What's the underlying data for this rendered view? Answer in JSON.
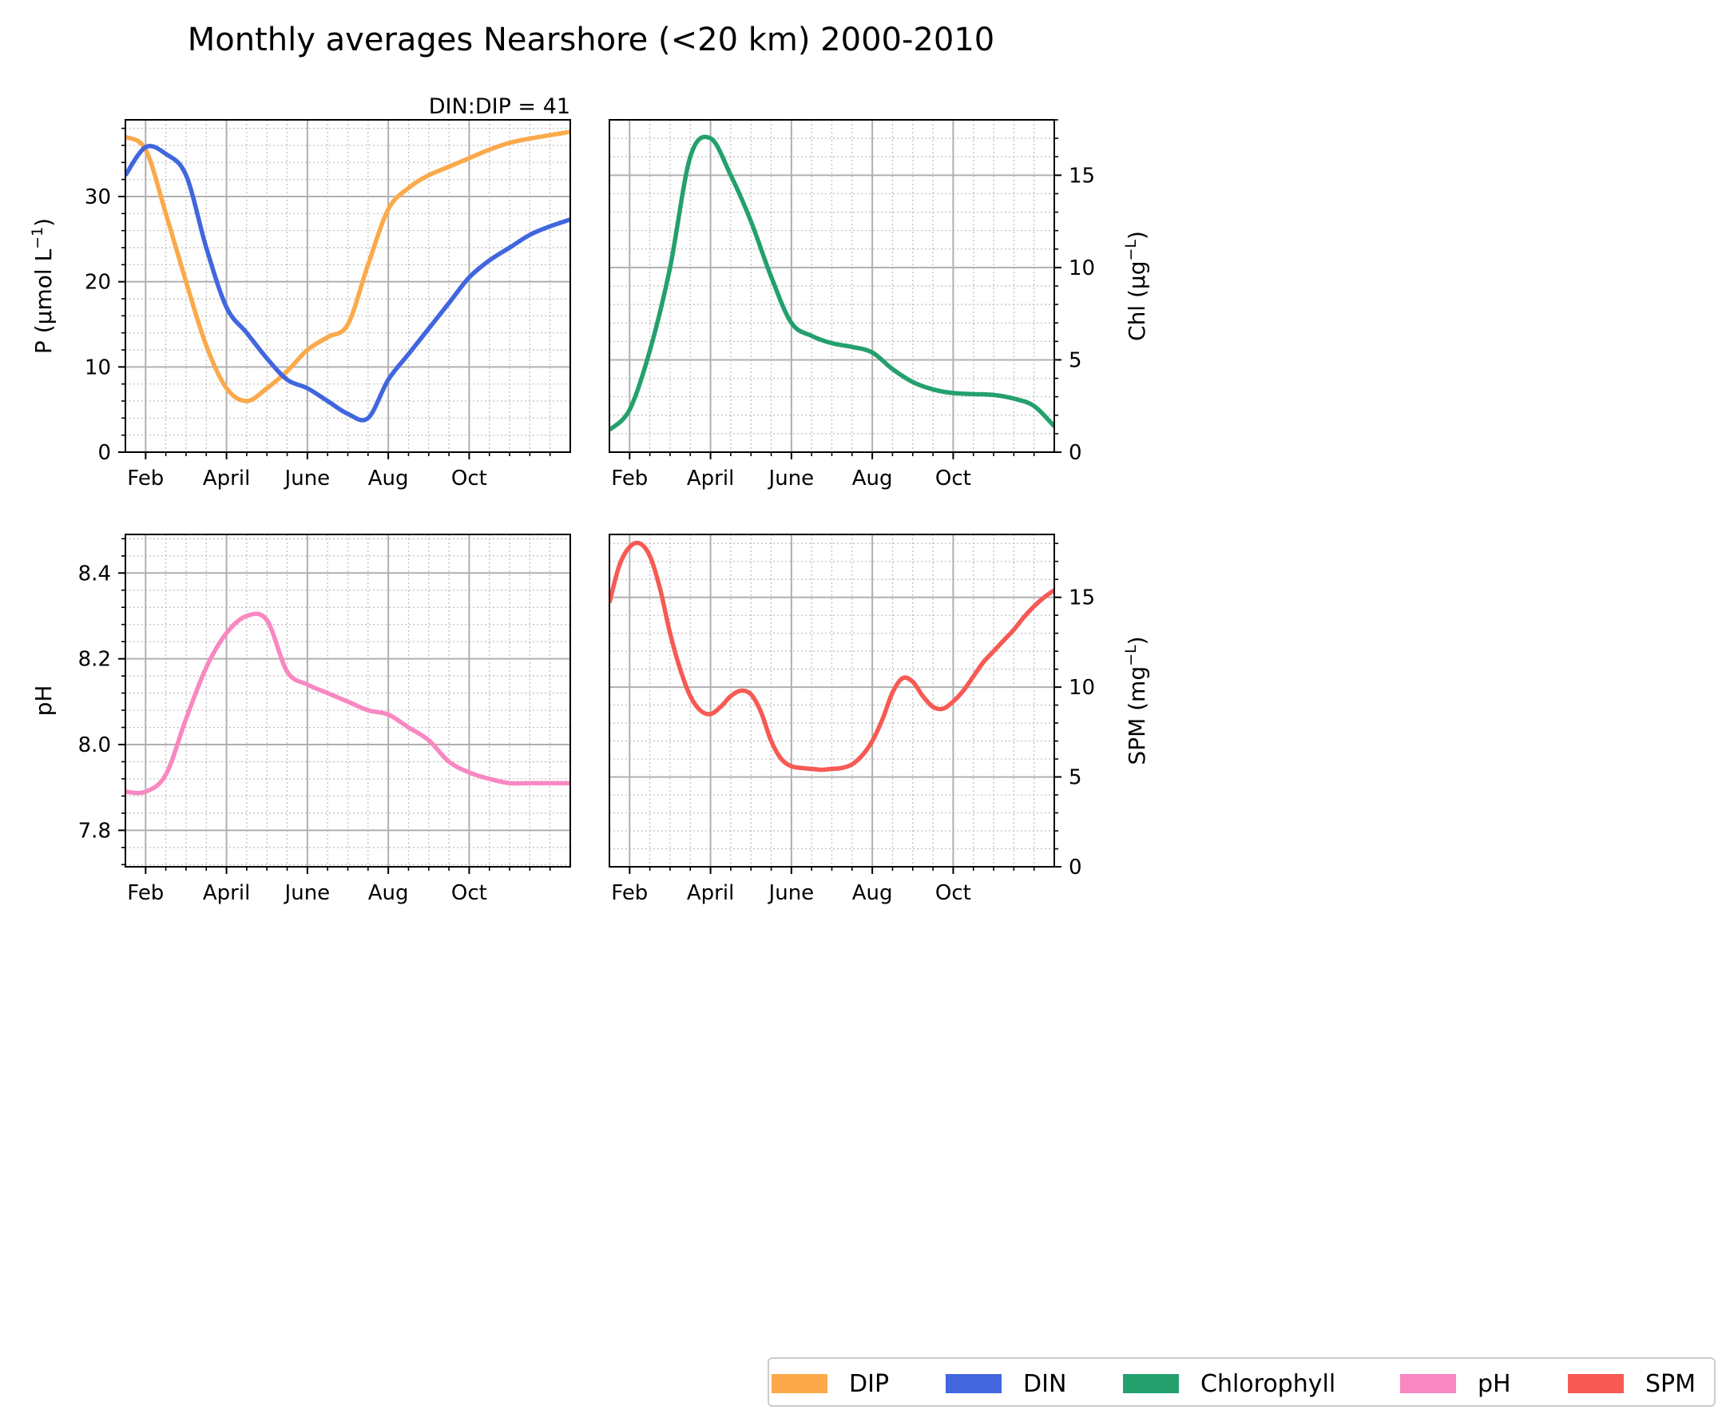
{
  "figure_title": "Monthly averages Nearshore (<20 km) 2000-2010",
  "legend": [
    {
      "label": "DIP",
      "color": "#fba94a"
    },
    {
      "label": "DIN",
      "color": "#4166de"
    },
    {
      "label": "Chlorophyll",
      "color": "#23a06d"
    },
    {
      "label": "pH",
      "color": "#f987c2"
    },
    {
      "label": "SPM",
      "color": "#f65a53"
    }
  ],
  "chart_data": [
    {
      "id": "p",
      "type": "line",
      "title": "",
      "annotation": "DIN:DIP = 41",
      "ylabel_main": "P (µmol L",
      "ylabel_sup": "−1",
      "ylabel_tail": ")",
      "ylabel_side": "left",
      "ylim": [
        0,
        39
      ],
      "xlim": [
        0.5,
        11.5
      ],
      "yticks": [
        0,
        10,
        20,
        30
      ],
      "ytick_labels": [
        "0",
        "10",
        "20",
        "30"
      ],
      "yminor_step": 2,
      "xticks": [
        1,
        3,
        5,
        7,
        9
      ],
      "xtick_labels": [
        "Feb",
        "April",
        "June",
        "Aug",
        "Oct"
      ],
      "series": [
        {
          "name": "DIP",
          "color": "#fba94a",
          "x": [
            0.5,
            1.0,
            1.5,
            2.0,
            2.5,
            3.0,
            3.5,
            4.0,
            4.5,
            5.0,
            5.5,
            6.0,
            6.5,
            7.0,
            7.5,
            8.0,
            8.5,
            9.0,
            9.5,
            10.0,
            10.5,
            11.0,
            11.5
          ],
          "y": [
            37.0,
            35.5,
            28.0,
            20.0,
            12.5,
            7.5,
            6.0,
            7.5,
            9.5,
            12.0,
            13.5,
            15.0,
            22.0,
            28.5,
            31.0,
            32.5,
            33.5,
            34.5,
            35.5,
            36.3,
            36.8,
            37.2,
            37.6
          ]
        },
        {
          "name": "DIN",
          "color": "#4166de",
          "x": [
            0.5,
            1.0,
            1.5,
            2.0,
            2.5,
            3.0,
            3.5,
            4.0,
            4.5,
            5.0,
            5.5,
            6.0,
            6.5,
            7.0,
            7.5,
            8.0,
            8.5,
            9.0,
            9.5,
            10.0,
            10.5,
            11.0,
            11.5
          ],
          "y": [
            32.5,
            35.8,
            35.0,
            32.5,
            24.0,
            17.0,
            14.0,
            11.0,
            8.5,
            7.5,
            6.0,
            4.5,
            4.0,
            8.5,
            11.5,
            14.5,
            17.5,
            20.5,
            22.5,
            24.0,
            25.5,
            26.5,
            27.3
          ]
        }
      ]
    },
    {
      "id": "chl",
      "type": "line",
      "title": "",
      "annotation": "",
      "ylabel_main": "Chl (µg",
      "ylabel_sup": "−L",
      "ylabel_tail": ")",
      "ylabel_side": "right",
      "ylim": [
        0,
        18
      ],
      "xlim": [
        0.5,
        11.5
      ],
      "yticks": [
        0,
        5,
        10,
        15
      ],
      "ytick_labels": [
        "0",
        "5",
        "10",
        "15"
      ],
      "yminor_step": 1,
      "xticks": [
        1,
        3,
        5,
        7,
        9
      ],
      "xtick_labels": [
        "Feb",
        "April",
        "June",
        "Aug",
        "Oct"
      ],
      "series": [
        {
          "name": "Chlorophyll",
          "color": "#23a06d",
          "x": [
            0.5,
            1.0,
            1.5,
            2.0,
            2.5,
            3.0,
            3.5,
            4.0,
            4.5,
            5.0,
            5.5,
            6.0,
            6.5,
            7.0,
            7.5,
            8.0,
            8.5,
            9.0,
            9.5,
            10.0,
            10.5,
            11.0,
            11.5
          ],
          "y": [
            1.2,
            2.3,
            5.5,
            10.0,
            16.0,
            17.0,
            15.0,
            12.5,
            9.5,
            7.0,
            6.3,
            5.9,
            5.7,
            5.4,
            4.5,
            3.8,
            3.4,
            3.2,
            3.15,
            3.1,
            2.9,
            2.5,
            1.4
          ]
        }
      ]
    },
    {
      "id": "ph",
      "type": "line",
      "title": "",
      "annotation": "",
      "ylabel_main": "pH",
      "ylabel_sup": "",
      "ylabel_tail": "",
      "ylabel_side": "left",
      "ylim": [
        7.715,
        8.49
      ],
      "xlim": [
        0.5,
        11.5
      ],
      "yticks": [
        7.8,
        8.0,
        8.2,
        8.4
      ],
      "ytick_labels": [
        "7.8",
        "8.0",
        "8.2",
        "8.4"
      ],
      "yminor_step": 0.04,
      "xticks": [
        1,
        3,
        5,
        7,
        9
      ],
      "xtick_labels": [
        "Feb",
        "April",
        "June",
        "Aug",
        "Oct"
      ],
      "series": [
        {
          "name": "pH",
          "color": "#f987c2",
          "x": [
            0.5,
            1.0,
            1.5,
            2.0,
            2.5,
            3.0,
            3.5,
            4.0,
            4.5,
            5.0,
            5.5,
            6.0,
            6.5,
            7.0,
            7.5,
            8.0,
            8.5,
            9.0,
            9.5,
            10.0,
            10.5,
            11.0,
            11.5
          ],
          "y": [
            7.89,
            7.89,
            7.93,
            8.06,
            8.18,
            8.26,
            8.3,
            8.29,
            8.17,
            8.14,
            8.12,
            8.1,
            8.08,
            8.07,
            8.04,
            8.01,
            7.96,
            7.935,
            7.92,
            7.91,
            7.91,
            7.91,
            7.91
          ]
        }
      ]
    },
    {
      "id": "spm",
      "type": "line",
      "title": "",
      "annotation": "",
      "ylabel_main": "SPM (mg",
      "ylabel_sup": "−L",
      "ylabel_tail": ")",
      "ylabel_side": "right",
      "ylim": [
        0,
        18.5
      ],
      "xlim": [
        0.5,
        11.5
      ],
      "yticks": [
        0,
        5,
        10,
        15
      ],
      "ytick_labels": [
        "0",
        "5",
        "10",
        "15"
      ],
      "yminor_step": 1,
      "xticks": [
        1,
        3,
        5,
        7,
        9
      ],
      "xtick_labels": [
        "Feb",
        "April",
        "June",
        "Aug",
        "Oct"
      ],
      "series": [
        {
          "name": "SPM",
          "color": "#f65a53",
          "x": [
            0.5,
            0.75,
            1.0,
            1.25,
            1.5,
            1.75,
            2.0,
            2.25,
            2.5,
            2.75,
            3.0,
            3.25,
            3.5,
            3.75,
            4.0,
            4.25,
            4.5,
            4.75,
            5.0,
            5.25,
            5.5,
            5.75,
            6.0,
            6.25,
            6.5,
            6.75,
            7.0,
            7.25,
            7.5,
            7.75,
            8.0,
            8.25,
            8.5,
            8.75,
            9.0,
            9.25,
            9.5,
            9.75,
            10.0,
            10.25,
            10.5,
            10.75,
            11.0,
            11.25,
            11.5
          ],
          "y": [
            14.7,
            16.8,
            17.8,
            18.0,
            17.3,
            15.5,
            13.0,
            11.0,
            9.5,
            8.7,
            8.5,
            8.9,
            9.5,
            9.8,
            9.6,
            8.6,
            7.0,
            6.0,
            5.6,
            5.5,
            5.45,
            5.4,
            5.45,
            5.5,
            5.7,
            6.2,
            7.0,
            8.2,
            9.7,
            10.5,
            10.3,
            9.5,
            8.9,
            8.8,
            9.2,
            9.8,
            10.6,
            11.4,
            12.0,
            12.6,
            13.2,
            13.9,
            14.5,
            15.0,
            15.4
          ]
        }
      ]
    }
  ]
}
